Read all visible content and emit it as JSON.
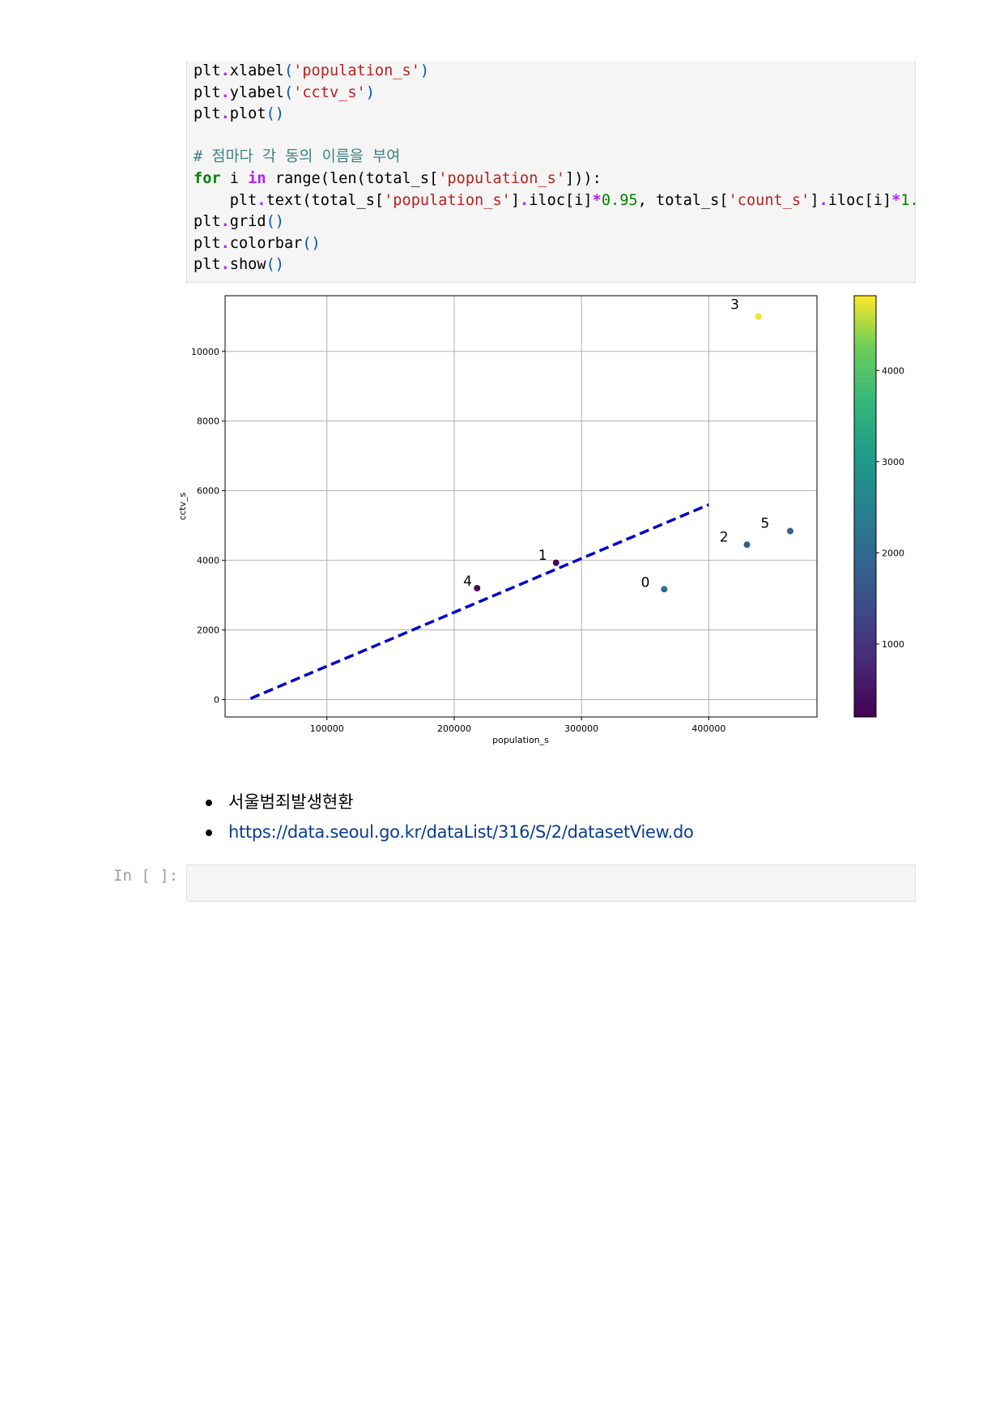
{
  "code_cell": {
    "lines": [
      [
        {
          "t": "plt"
        },
        {
          "t": ".",
          "c": "o"
        },
        {
          "t": "xlabel"
        },
        {
          "t": "(",
          "c": "p"
        },
        {
          "t": "'population_s'",
          "c": "s"
        },
        {
          "t": ")",
          "c": "p"
        }
      ],
      [
        {
          "t": "plt"
        },
        {
          "t": ".",
          "c": "o"
        },
        {
          "t": "ylabel"
        },
        {
          "t": "(",
          "c": "p"
        },
        {
          "t": "'cctv_s'",
          "c": "s"
        },
        {
          "t": ")",
          "c": "p"
        }
      ],
      [
        {
          "t": "plt"
        },
        {
          "t": ".",
          "c": "o"
        },
        {
          "t": "plot"
        },
        {
          "t": "()",
          "c": "p"
        }
      ],
      [],
      [
        {
          "t": "# 점마다 각 동의 이름을 부여",
          "c": "c"
        }
      ],
      [
        {
          "t": "for",
          "c": "k"
        },
        {
          "t": " i "
        },
        {
          "t": "in",
          "c": "o"
        },
        {
          "t": " range(len(total_s["
        },
        {
          "t": "'population_s'",
          "c": "s"
        },
        {
          "t": "])):"
        }
      ],
      [
        {
          "t": "    plt"
        },
        {
          "t": ".",
          "c": "o"
        },
        {
          "t": "text(total_s["
        },
        {
          "t": "'population_s'",
          "c": "s"
        },
        {
          "t": "]"
        },
        {
          "t": ".",
          "c": "o"
        },
        {
          "t": "iloc[i]"
        },
        {
          "t": "*",
          "c": "o"
        },
        {
          "t": "0.95",
          "c": "m"
        },
        {
          "t": ", total_s["
        },
        {
          "t": "'count_s'",
          "c": "s"
        },
        {
          "t": "]"
        },
        {
          "t": ".",
          "c": "o"
        },
        {
          "t": "iloc[i]"
        },
        {
          "t": "*",
          "c": "o"
        },
        {
          "t": "1.",
          "c": "m"
        }
      ],
      [
        {
          "t": "plt"
        },
        {
          "t": ".",
          "c": "o"
        },
        {
          "t": "grid"
        },
        {
          "t": "()",
          "c": "p"
        }
      ],
      [
        {
          "t": "plt"
        },
        {
          "t": ".",
          "c": "o"
        },
        {
          "t": "colorbar"
        },
        {
          "t": "()",
          "c": "p"
        }
      ],
      [
        {
          "t": "plt"
        },
        {
          "t": ".",
          "c": "o"
        },
        {
          "t": "show"
        },
        {
          "t": "()",
          "c": "p"
        }
      ]
    ]
  },
  "chart_data": {
    "type": "scatter",
    "xlabel": "population_s",
    "ylabel": "cctv_s",
    "xlim": [
      20000,
      485000
    ],
    "ylim": [
      -500,
      11600
    ],
    "x_ticks": [
      100000,
      200000,
      300000,
      400000
    ],
    "y_ticks": [
      0,
      2000,
      4000,
      6000,
      8000,
      10000
    ],
    "grid": true,
    "points": [
      {
        "label": "0",
        "x": 365000,
        "y": 3170,
        "color_value": 2050
      },
      {
        "label": "1",
        "x": 280000,
        "y": 3930,
        "color_value": 300
      },
      {
        "label": "2",
        "x": 430000,
        "y": 4450,
        "color_value": 1700
      },
      {
        "label": "3",
        "x": 439000,
        "y": 11000,
        "color_value": 4750
      },
      {
        "label": "4",
        "x": 218000,
        "y": 3200,
        "color_value": 400
      },
      {
        "label": "5",
        "x": 464000,
        "y": 4840,
        "color_value": 1850
      }
    ],
    "trend_line": {
      "x": [
        40000,
        400000
      ],
      "y": [
        30,
        5600
      ],
      "style": "dashed",
      "color": "#0000cc"
    },
    "colorbar": {
      "min": 200,
      "max": 4820,
      "ticks": [
        1000,
        2000,
        3000,
        4000
      ],
      "colormap": "viridis"
    }
  },
  "links": {
    "items": [
      {
        "text": "서울범죄발생현환",
        "is_link": false
      },
      {
        "text": "https://data.seoul.go.kr/dataList/316/S/2/datasetView.do",
        "is_link": true
      }
    ]
  },
  "empty_cell": {
    "prompt": "In [ ]:"
  }
}
